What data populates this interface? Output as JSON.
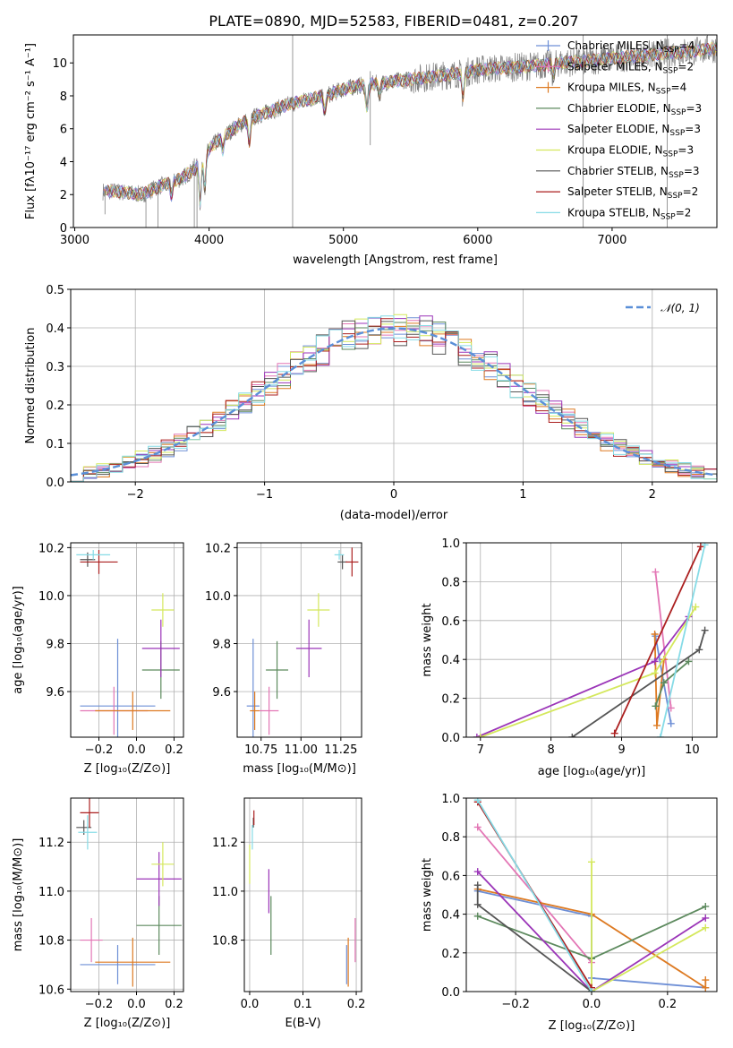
{
  "title": "PLATE=0890, MJD=52583, FIBERID=0481, z=0.207",
  "colors": {
    "Chabrier MILES": "#6e8fd6",
    "Salpeter MILES": "#e376b5",
    "Kroupa MILES": "#dd7a22",
    "Chabrier ELODIE": "#5d8a5e",
    "Salpeter ELODIE": "#9b35b8",
    "Kroupa ELODIE": "#d4e85c",
    "Chabrier STELIB": "#555555",
    "Salpeter STELIB": "#ab1f1f",
    "Kroupa STELIB": "#86dbe6",
    "data": "#808080",
    "gauss": "#5a8fd8"
  },
  "chart_data": [
    {
      "id": "spectrum",
      "type": "line",
      "title": "PLATE=0890, MJD=52583, FIBERID=0481, z=0.207",
      "xlabel": "wavelength [Angstrom, rest frame]",
      "ylabel": "Flux [fλ10⁻¹⁷ erg cm⁻² s⁻¹ A⁻¹]",
      "xlim": [
        2990,
        7780
      ],
      "ylim": [
        0,
        11.7
      ],
      "xticks": [
        "3000",
        "4000",
        "5000",
        "6000",
        "7000"
      ],
      "yticks": [
        "0",
        "2",
        "4",
        "6",
        "8",
        "10"
      ],
      "legend_position": "top-right",
      "legend": [
        {
          "name": "Chabrier MILES",
          "nssp": "4"
        },
        {
          "name": "Salpeter MILES",
          "nssp": "2"
        },
        {
          "name": "Kroupa MILES",
          "nssp": "4"
        },
        {
          "name": "Chabrier ELODIE",
          "nssp": "3"
        },
        {
          "name": "Salpeter ELODIE",
          "nssp": "3"
        },
        {
          "name": "Kroupa ELODIE",
          "nssp": "3"
        },
        {
          "name": "Chabrier STELIB",
          "nssp": "3"
        },
        {
          "name": "Salpeter STELIB",
          "nssp": "2"
        },
        {
          "name": "Kroupa STELIB",
          "nssp": "2"
        }
      ],
      "continuum": {
        "x": [
          3210,
          3300,
          3400,
          3500,
          3600,
          3700,
          3800,
          3900,
          4000,
          4100,
          4200,
          4300,
          4400,
          4500,
          4600,
          4700,
          4800,
          4900,
          5000,
          5100,
          5200,
          5300,
          5400,
          5500,
          5600,
          5700,
          5800,
          5900,
          6000,
          6200,
          6400,
          6600,
          6800,
          7000,
          7200,
          7400,
          7600,
          7780
        ],
        "y": [
          2.2,
          2.2,
          2.1,
          2.0,
          2.4,
          2.7,
          3.0,
          3.6,
          4.8,
          5.5,
          6.1,
          6.6,
          6.9,
          7.2,
          7.5,
          7.7,
          7.9,
          8.1,
          8.4,
          8.6,
          8.7,
          8.8,
          8.9,
          9.0,
          9.1,
          9.2,
          9.3,
          9.4,
          9.6,
          9.7,
          9.8,
          10.0,
          10.1,
          10.3,
          10.4,
          10.6,
          10.7,
          10.9
        ]
      },
      "features": [
        {
          "x": 3720,
          "depth": 0.8
        },
        {
          "x": 3934,
          "depth": 2.5
        },
        {
          "x": 3969,
          "depth": 2.0
        },
        {
          "x": 4102,
          "depth": 0.8
        },
        {
          "x": 4300,
          "depth": 1.5
        },
        {
          "x": 4861,
          "depth": 1.0
        },
        {
          "x": 5175,
          "depth": 1.5
        },
        {
          "x": 5270,
          "depth": 0.7
        },
        {
          "x": 5890,
          "depth": 1.4
        },
        {
          "x": 6563,
          "depth": 0.8
        }
      ],
      "spikes": [
        {
          "x": 4622,
          "low": 0,
          "high": 11.7
        },
        {
          "x": 6785,
          "low": 0,
          "high": 11.7
        },
        {
          "x": 7410,
          "low": 0,
          "high": 11.7
        },
        {
          "x": 3225,
          "low": 0.8,
          "high": 2.2
        },
        {
          "x": 3530,
          "low": 0,
          "high": 2.4
        },
        {
          "x": 3620,
          "low": 0,
          "high": 2.6
        },
        {
          "x": 3890,
          "low": 0,
          "high": 4.2
        },
        {
          "x": 3910,
          "low": 0,
          "high": 3.5
        },
        {
          "x": 5200,
          "low": 5.0,
          "high": 9.5
        }
      ]
    },
    {
      "id": "residuals",
      "type": "step",
      "xlabel": "(data-model)/error",
      "ylabel": "Normed distribution",
      "xlim": [
        -2.5,
        2.5
      ],
      "ylim": [
        0,
        0.5
      ],
      "xticks": [
        "−2",
        "−1",
        "0",
        "1",
        "2"
      ],
      "yticks": [
        "0.0",
        "0.1",
        "0.2",
        "0.3",
        "0.4",
        "0.5"
      ],
      "bins": 50,
      "legend_position": "top-right",
      "gauss_label": "𝒩(0, 1)",
      "spread": 0.035,
      "grid": true
    },
    {
      "id": "age-vs-Z",
      "type": "errorbar",
      "xlabel": "Z [log₁₀(Z/Z⊙)]",
      "ylabel": "age  [log₁₀(age/yr)]",
      "xlim": [
        -0.35,
        0.25
      ],
      "ylim": [
        9.41,
        10.22
      ],
      "xticks": [
        {
          "v": -0.2,
          "l": "−0.2"
        },
        {
          "v": 0.0,
          "l": "0.0"
        },
        {
          "v": 0.2,
          "l": "0.2"
        }
      ],
      "yticks": [
        {
          "v": 9.6,
          "l": "9.6"
        },
        {
          "v": 9.8,
          "l": "9.8"
        },
        {
          "v": 10.0,
          "l": "10.0"
        },
        {
          "v": 10.2,
          "l": "10.2"
        }
      ],
      "points": [
        {
          "s": "Chabrier MILES",
          "x": -0.1,
          "xe": 0.2,
          "y": 9.54,
          "ye": 0.28
        },
        {
          "s": "Salpeter MILES",
          "x": -0.12,
          "xe": 0.18,
          "y": 9.52,
          "ye": 0.1
        },
        {
          "s": "Kroupa MILES",
          "x": -0.02,
          "xe": 0.2,
          "y": 9.52,
          "ye": 0.08
        },
        {
          "s": "Chabrier ELODIE",
          "x": 0.13,
          "xe": 0.1,
          "y": 9.69,
          "ye": 0.12
        },
        {
          "s": "Salpeter ELODIE",
          "x": 0.13,
          "xe": 0.1,
          "y": 9.78,
          "ye": 0.12
        },
        {
          "s": "Kroupa ELODIE",
          "x": 0.14,
          "xe": 0.06,
          "y": 9.94,
          "ye": 0.07
        },
        {
          "s": "Chabrier STELIB",
          "x": -0.26,
          "xe": 0.04,
          "y": 10.15,
          "ye": 0.03
        },
        {
          "s": "Salpeter STELIB",
          "x": -0.2,
          "xe": 0.1,
          "y": 10.14,
          "ye": 0.05
        },
        {
          "s": "Kroupa STELIB",
          "x": -0.23,
          "xe": 0.09,
          "y": 10.17,
          "ye": 0.02
        }
      ]
    },
    {
      "id": "age-vs-mass",
      "type": "errorbar",
      "xlabel": "mass [log₁₀(M/M⊙)]",
      "ylabel": "",
      "xlim": [
        10.6,
        11.38
      ],
      "ylim": [
        9.41,
        10.22
      ],
      "xticks": [
        {
          "v": 10.75,
          "l": "10.75"
        },
        {
          "v": 11.0,
          "l": "11.00"
        },
        {
          "v": 11.25,
          "l": "11.25"
        }
      ],
      "yticks": [
        {
          "v": 9.6,
          "l": "9.6"
        },
        {
          "v": 9.8,
          "l": "9.8"
        },
        {
          "v": 10.0,
          "l": "10.0"
        },
        {
          "v": 10.2,
          "l": "10.2"
        }
      ],
      "points": [
        {
          "s": "Chabrier MILES",
          "x": 10.7,
          "xe": 0.04,
          "y": 9.54,
          "ye": 0.28
        },
        {
          "s": "Salpeter MILES",
          "x": 10.8,
          "xe": 0.06,
          "y": 9.52,
          "ye": 0.1
        },
        {
          "s": "Kroupa MILES",
          "x": 10.71,
          "xe": 0.03,
          "y": 9.52,
          "ye": 0.08
        },
        {
          "s": "Chabrier ELODIE",
          "x": 10.85,
          "xe": 0.07,
          "y": 9.69,
          "ye": 0.12
        },
        {
          "s": "Salpeter ELODIE",
          "x": 11.05,
          "xe": 0.08,
          "y": 9.78,
          "ye": 0.12
        },
        {
          "s": "Kroupa ELODIE",
          "x": 11.11,
          "xe": 0.07,
          "y": 9.94,
          "ye": 0.07
        },
        {
          "s": "Chabrier STELIB",
          "x": 11.26,
          "xe": 0.03,
          "y": 10.14,
          "ye": 0.03
        },
        {
          "s": "Salpeter STELIB",
          "x": 11.32,
          "xe": 0.04,
          "y": 10.14,
          "ye": 0.06
        },
        {
          "s": "Kroupa STELIB",
          "x": 11.24,
          "xe": 0.03,
          "y": 10.17,
          "ye": 0.02
        }
      ]
    },
    {
      "id": "weight-vs-age",
      "type": "line",
      "xlabel": "age  [log₁₀(age/yr)]",
      "ylabel": "mass weight",
      "xlim": [
        6.8,
        10.35
      ],
      "ylim": [
        0,
        1.0
      ],
      "xticks": [
        {
          "v": 7,
          "l": "7"
        },
        {
          "v": 8,
          "l": "8"
        },
        {
          "v": 9,
          "l": "9"
        },
        {
          "v": 10,
          "l": "10"
        }
      ],
      "yticks": [
        {
          "v": 0,
          "l": "0.0"
        },
        {
          "v": 0.2,
          "l": "0.2"
        },
        {
          "v": 0.4,
          "l": "0.4"
        },
        {
          "v": 0.6,
          "l": "0.6"
        },
        {
          "v": 0.8,
          "l": "0.8"
        },
        {
          "v": 1.0,
          "l": "1.0"
        }
      ],
      "series": [
        {
          "s": "Chabrier MILES",
          "x": [
            9.48,
            9.7
          ],
          "y": [
            0.52,
            0.07
          ]
        },
        {
          "s": "Salpeter MILES",
          "x": [
            9.48,
            9.7
          ],
          "y": [
            0.85,
            0.15
          ]
        },
        {
          "s": "Kroupa MILES",
          "x": [
            9.47,
            9.5,
            9.6
          ],
          "y": [
            0.53,
            0.06,
            0.4
          ]
        },
        {
          "s": "Chabrier ELODIE",
          "x": [
            9.48,
            9.6,
            9.95
          ],
          "y": [
            0.16,
            0.28,
            0.39
          ]
        },
        {
          "s": "Salpeter ELODIE",
          "x": [
            6.95,
            9.47,
            9.95
          ],
          "y": [
            0.0,
            0.39,
            0.62
          ]
        },
        {
          "s": "Kroupa ELODIE",
          "x": [
            7.0,
            9.47,
            10.05
          ],
          "y": [
            0.0,
            0.33,
            0.67
          ]
        },
        {
          "s": "Chabrier STELIB",
          "x": [
            8.3,
            10.1,
            10.18
          ],
          "y": [
            0.0,
            0.45,
            0.55
          ]
        },
        {
          "s": "Salpeter STELIB",
          "x": [
            8.9,
            10.12
          ],
          "y": [
            0.02,
            0.98
          ]
        },
        {
          "s": "Kroupa STELIB",
          "x": [
            9.55,
            10.18
          ],
          "y": [
            0.0,
            0.99
          ]
        }
      ]
    },
    {
      "id": "mass-vs-Z",
      "type": "errorbar",
      "xlabel": "Z [log₁₀(Z/Z⊙)]",
      "ylabel": "mass [log₁₀(M/M⊙)]",
      "xlim": [
        -0.35,
        0.25
      ],
      "ylim": [
        10.59,
        11.38
      ],
      "xticks": [
        {
          "v": -0.2,
          "l": "−0.2"
        },
        {
          "v": 0.0,
          "l": "0.0"
        },
        {
          "v": 0.2,
          "l": "0.2"
        }
      ],
      "yticks": [
        {
          "v": 10.6,
          "l": "10.6"
        },
        {
          "v": 10.8,
          "l": "10.8"
        },
        {
          "v": 11.0,
          "l": "11.0"
        },
        {
          "v": 11.2,
          "l": "11.2"
        }
      ],
      "points": [
        {
          "s": "Chabrier MILES",
          "x": -0.1,
          "xe": 0.2,
          "y": 10.7,
          "ye": 0.08
        },
        {
          "s": "Salpeter MILES",
          "x": -0.24,
          "xe": 0.06,
          "y": 10.8,
          "ye": 0.09
        },
        {
          "s": "Kroupa MILES",
          "x": -0.02,
          "xe": 0.2,
          "y": 10.71,
          "ye": 0.1
        },
        {
          "s": "Chabrier ELODIE",
          "x": 0.12,
          "xe": 0.12,
          "y": 10.86,
          "ye": 0.12
        },
        {
          "s": "Salpeter ELODIE",
          "x": 0.12,
          "xe": 0.12,
          "y": 11.05,
          "ye": 0.11
        },
        {
          "s": "Kroupa ELODIE",
          "x": 0.14,
          "xe": 0.06,
          "y": 11.11,
          "ye": 0.09
        },
        {
          "s": "Chabrier STELIB",
          "x": -0.28,
          "xe": 0.04,
          "y": 11.26,
          "ye": 0.03
        },
        {
          "s": "Salpeter STELIB",
          "x": -0.25,
          "xe": 0.05,
          "y": 11.32,
          "ye": 0.06
        },
        {
          "s": "Kroupa STELIB",
          "x": -0.26,
          "xe": 0.05,
          "y": 11.24,
          "ye": 0.07
        }
      ]
    },
    {
      "id": "mass-vs-ebv",
      "type": "errorbar",
      "xlabel": "E(B-V)",
      "ylabel": "",
      "xlim": [
        -0.01,
        0.21
      ],
      "ylim": [
        10.59,
        11.38
      ],
      "xticks": [
        {
          "v": 0.0,
          "l": "0.0"
        },
        {
          "v": 0.1,
          "l": "0.1"
        },
        {
          "v": 0.2,
          "l": "0.2"
        }
      ],
      "yticks": [
        {
          "v": 10.8,
          "l": "10.8"
        },
        {
          "v": 11.0,
          "l": "11.0"
        },
        {
          "v": 11.2,
          "l": "11.2"
        }
      ],
      "points": [
        {
          "s": "Chabrier MILES",
          "x": 0.182,
          "xe": 0,
          "y": 10.7,
          "ye": 0.08
        },
        {
          "s": "Salpeter MILES",
          "x": 0.198,
          "xe": 0,
          "y": 10.8,
          "ye": 0.09
        },
        {
          "s": "Kroupa MILES",
          "x": 0.185,
          "xe": 0,
          "y": 10.71,
          "ye": 0.1
        },
        {
          "s": "Chabrier ELODIE",
          "x": 0.04,
          "xe": 0,
          "y": 10.86,
          "ye": 0.12
        },
        {
          "s": "Salpeter ELODIE",
          "x": 0.036,
          "xe": 0,
          "y": 11.0,
          "ye": 0.09
        },
        {
          "s": "Kroupa ELODIE",
          "x": 0.0,
          "xe": 0,
          "y": 11.11,
          "ye": 0.08
        },
        {
          "s": "Chabrier STELIB",
          "x": 0.007,
          "xe": 0,
          "y": 11.28,
          "ye": 0.02
        },
        {
          "s": "Salpeter STELIB",
          "x": 0.008,
          "xe": 0,
          "y": 11.3,
          "ye": 0.03
        },
        {
          "s": "Kroupa STELIB",
          "x": 0.005,
          "xe": 0,
          "y": 11.22,
          "ye": 0.05
        }
      ]
    },
    {
      "id": "weight-vs-Z",
      "type": "line",
      "xlabel": "Z [log₁₀(Z/Z⊙)]",
      "ylabel": "mass weight",
      "xlim": [
        -0.33,
        0.33
      ],
      "ylim": [
        0,
        1.0
      ],
      "xticks": [
        {
          "v": -0.2,
          "l": "−0.2"
        },
        {
          "v": 0.0,
          "l": "0.0"
        },
        {
          "v": 0.2,
          "l": "0.2"
        }
      ],
      "yticks": [
        {
          "v": 0,
          "l": "0.0"
        },
        {
          "v": 0.2,
          "l": "0.2"
        },
        {
          "v": 0.4,
          "l": "0.4"
        },
        {
          "v": 0.6,
          "l": "0.6"
        },
        {
          "v": 0.8,
          "l": "0.8"
        },
        {
          "v": 1.0,
          "l": "1.0"
        }
      ],
      "series": [
        {
          "s": "Chabrier MILES",
          "x": [
            -0.3,
            0.0,
            0.0,
            0.3
          ],
          "y": [
            0.52,
            0.39,
            0.07,
            0.02
          ]
        },
        {
          "s": "Salpeter MILES",
          "x": [
            -0.3,
            0.0
          ],
          "y": [
            0.85,
            0.15
          ]
        },
        {
          "s": "Kroupa MILES",
          "x": [
            -0.3,
            0.0,
            0.3,
            0.3
          ],
          "y": [
            0.53,
            0.4,
            0.02,
            0.06
          ]
        },
        {
          "s": "Chabrier ELODIE",
          "x": [
            -0.3,
            0.0,
            0.3
          ],
          "y": [
            0.39,
            0.17,
            0.44
          ]
        },
        {
          "s": "Salpeter ELODIE",
          "x": [
            -0.3,
            0.0,
            0.3
          ],
          "y": [
            0.62,
            0.0,
            0.38
          ]
        },
        {
          "s": "Kroupa ELODIE",
          "x": [
            0.0,
            0.0,
            0.3
          ],
          "y": [
            0.67,
            0.0,
            0.33
          ]
        },
        {
          "s": "Chabrier STELIB",
          "x": [
            -0.3,
            -0.3,
            0.0
          ],
          "y": [
            0.55,
            0.45,
            0.0
          ]
        },
        {
          "s": "Salpeter STELIB",
          "x": [
            -0.3,
            0.0
          ],
          "y": [
            0.98,
            0.02
          ]
        },
        {
          "s": "Kroupa STELIB",
          "x": [
            -0.3,
            0.0
          ],
          "y": [
            0.99,
            0.0
          ]
        }
      ]
    }
  ]
}
